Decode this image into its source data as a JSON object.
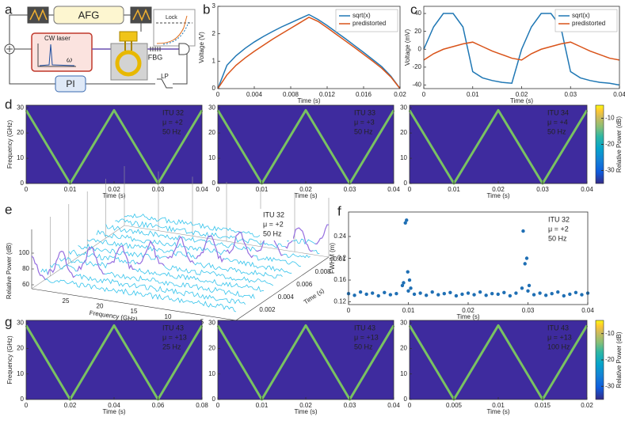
{
  "panels": [
    "a",
    "b",
    "c",
    "d",
    "e",
    "f",
    "g"
  ],
  "diagram": {
    "afg": "AFG",
    "laser": "CW laser",
    "omega": "ω",
    "lock": "Lock",
    "fbg": "FBG",
    "pi": "PI",
    "lp": "LP"
  },
  "chart_data": [
    {
      "type": "line",
      "xlabel": "Time (s)",
      "ylabel": "Voltage (V)",
      "x": [
        0,
        0.001,
        0.002,
        0.003,
        0.004,
        0.005,
        0.006,
        0.007,
        0.008,
        0.009,
        0.01,
        0.011,
        0.012,
        0.013,
        0.014,
        0.015,
        0.016,
        0.017,
        0.018,
        0.019,
        0.02
      ],
      "series": [
        {
          "name": "sqrt(x)",
          "color": "#1f77b4",
          "values": [
            0,
            0.85,
            1.2,
            1.47,
            1.7,
            1.9,
            2.08,
            2.25,
            2.4,
            2.55,
            2.7,
            2.52,
            2.3,
            2.06,
            1.82,
            1.57,
            1.32,
            1.06,
            0.8,
            0.45,
            0
          ]
        },
        {
          "name": "predistorted",
          "color": "#d95319",
          "values": [
            0,
            0.5,
            0.85,
            1.12,
            1.36,
            1.58,
            1.8,
            2.0,
            2.2,
            2.4,
            2.6,
            2.45,
            2.22,
            1.98,
            1.74,
            1.5,
            1.25,
            1.0,
            0.74,
            0.42,
            0
          ]
        }
      ],
      "xlim": [
        0,
        0.02
      ],
      "xticks": [
        0,
        0.004,
        0.008,
        0.012,
        0.016,
        0.02
      ],
      "ylim": [
        0,
        3
      ],
      "yticks": [
        0,
        1,
        2,
        3
      ],
      "legend": "upper right"
    },
    {
      "type": "line",
      "xlabel": "Time (s)",
      "ylabel": "Voltage (mV)",
      "x": [
        0,
        0.002,
        0.004,
        0.006,
        0.008,
        0.01,
        0.012,
        0.014,
        0.016,
        0.018,
        0.02,
        0.022,
        0.024,
        0.026,
        0.028,
        0.03,
        0.032,
        0.034,
        0.036,
        0.038,
        0.04
      ],
      "series": [
        {
          "name": "sqrt(x)",
          "color": "#1f77b4",
          "values": [
            0,
            25,
            40,
            40,
            25,
            -25,
            -32,
            -35,
            -37,
            -38,
            0,
            25,
            40,
            40,
            25,
            -25,
            -32,
            -35,
            -37,
            -38,
            -40
          ]
        },
        {
          "name": "predistorted",
          "color": "#d95319",
          "values": [
            -12,
            -5,
            0,
            3,
            6,
            8,
            3,
            -2,
            -6,
            -10,
            -12,
            -5,
            0,
            3,
            6,
            8,
            3,
            -2,
            -6,
            -10,
            -12
          ]
        }
      ],
      "xlim": [
        0,
        0.04
      ],
      "xticks": [
        0,
        0.01,
        0.02,
        0.03,
        0.04
      ],
      "ylim": [
        -44,
        48
      ],
      "yticks": [
        -40,
        -20,
        0,
        20,
        40
      ],
      "legend": "upper right"
    },
    {
      "type": "spectrogram",
      "xlabel": "Time (s)",
      "ylabel": "Frequency (GHz)",
      "annotations": [
        "ITU 32",
        "μ = +2",
        "50 Hz"
      ],
      "x": [
        0,
        0.01,
        0.02,
        0.03,
        0.04
      ],
      "values": [
        29,
        0,
        29,
        0,
        29
      ],
      "xlim": [
        0,
        0.04
      ],
      "xticks": [
        0,
        0.01,
        0.02,
        0.03,
        0.04
      ],
      "ylim": [
        0,
        31
      ],
      "yticks": [
        0,
        10,
        20,
        30
      ],
      "background": "#3e2b9e",
      "color": "#7fd35a"
    },
    {
      "type": "spectrogram",
      "xlabel": "Time (s)",
      "annotations": [
        "ITU 33",
        "μ = +3",
        "50 Hz"
      ],
      "x": [
        0,
        0.01,
        0.02,
        0.03,
        0.04
      ],
      "values": [
        29,
        0,
        29,
        0,
        29
      ],
      "xlim": [
        0,
        0.04
      ],
      "xticks": [
        0,
        0.01,
        0.02,
        0.03,
        0.04
      ],
      "ylim": [
        0,
        31
      ],
      "yticks": [
        0,
        10,
        20,
        30
      ],
      "background": "#3e2b9e",
      "color": "#7fd35a"
    },
    {
      "type": "spectrogram",
      "xlabel": "Time (s)",
      "annotations": [
        "ITU 34",
        "μ = +4",
        "50 Hz"
      ],
      "x": [
        0,
        0.01,
        0.02,
        0.03,
        0.04
      ],
      "values": [
        29,
        0,
        29,
        0,
        29
      ],
      "xlim": [
        0,
        0.04
      ],
      "xticks": [
        0,
        0.01,
        0.02,
        0.03,
        0.04
      ],
      "ylim": [
        0,
        31
      ],
      "yticks": [
        0,
        10,
        20,
        30
      ],
      "background": "#3e2b9e",
      "color": "#7fd35a",
      "clim": [
        -35,
        -5
      ],
      "cticks": [
        -10,
        -20,
        -30
      ],
      "clabel": "Relative Power (dB)"
    },
    {
      "type": "waterfall",
      "xlabel": "Frequency (GHz)",
      "ylabel": "Relative Power (dB)",
      "tlabel": "Time (s)",
      "annotations": [
        "ITU 32",
        "μ = +2",
        "50 Hz"
      ],
      "times": [
        0,
        0.001,
        0.002,
        0.003,
        0.004,
        0.005,
        0.006,
        0.007,
        0.008,
        0.009,
        0.01
      ],
      "peaks": [
        30,
        27,
        24,
        21,
        18,
        15,
        12,
        9,
        6,
        3,
        0
      ],
      "floor": 66,
      "peak_level": 95,
      "flim": [
        0,
        30
      ],
      "fticks": [
        0,
        5,
        10,
        15,
        20,
        25
      ],
      "tlim": [
        0,
        0.01
      ],
      "tticks": [
        0.002,
        0.004,
        0.006,
        0.008,
        0.01
      ],
      "zlim": [
        55,
        130
      ],
      "zticks": [
        60,
        80,
        100
      ],
      "color": "#35c4ec",
      "peak_color": "#9b6fe0"
    },
    {
      "type": "scatter",
      "xlabel": "Time (s)",
      "ylabel": "FWHM (m)",
      "annotations": [
        "ITU 32",
        "μ = +2",
        "50 Hz"
      ],
      "x": [
        0,
        0.001,
        0.002,
        0.003,
        0.004,
        0.005,
        0.006,
        0.007,
        0.008,
        0.009,
        0.01,
        0.011,
        0.012,
        0.013,
        0.014,
        0.015,
        0.016,
        0.017,
        0.018,
        0.019,
        0.02,
        0.021,
        0.022,
        0.023,
        0.024,
        0.025,
        0.026,
        0.027,
        0.028,
        0.029,
        0.03,
        0.031,
        0.032,
        0.033,
        0.034,
        0.035,
        0.036,
        0.037,
        0.038,
        0.039,
        0.04,
        0.0092,
        0.0095,
        0.0097,
        0.0099,
        0.0102,
        0.0104,
        0.0292,
        0.0295,
        0.0298,
        0.0302
      ],
      "values": [
        0.135,
        0.132,
        0.138,
        0.134,
        0.136,
        0.131,
        0.137,
        0.133,
        0.135,
        0.15,
        0.14,
        0.134,
        0.136,
        0.132,
        0.138,
        0.133,
        0.135,
        0.137,
        0.131,
        0.134,
        0.136,
        0.133,
        0.138,
        0.132,
        0.135,
        0.134,
        0.137,
        0.131,
        0.136,
        0.145,
        0.14,
        0.133,
        0.136,
        0.132,
        0.135,
        0.138,
        0.131,
        0.134,
        0.137,
        0.133,
        0.136,
        0.155,
        0.265,
        0.27,
        0.175,
        0.16,
        0.145,
        0.25,
        0.19,
        0.2,
        0.15
      ],
      "color": "#1f6fb4",
      "xlim": [
        0,
        0.04
      ],
      "xticks": [
        0,
        0.01,
        0.02,
        0.03,
        0.04
      ],
      "ylim": [
        0.115,
        0.285
      ],
      "yticks": [
        0.12,
        0.16,
        0.2,
        0.24
      ]
    },
    {
      "type": "spectrogram",
      "xlabel": "Time (s)",
      "ylabel": "Frequency (GHz)",
      "annotations": [
        "ITU 43",
        "μ = +13",
        "25 Hz"
      ],
      "x": [
        0,
        0.02,
        0.04,
        0.06,
        0.08
      ],
      "values": [
        29,
        0,
        29,
        0,
        29
      ],
      "xlim": [
        0,
        0.08
      ],
      "xticks": [
        0,
        0.02,
        0.04,
        0.06,
        0.08
      ],
      "ylim": [
        0,
        31
      ],
      "yticks": [
        0,
        10,
        20,
        30
      ],
      "background": "#3e2b9e",
      "color": "#7fd35a"
    },
    {
      "type": "spectrogram",
      "xlabel": "Time (s)",
      "annotations": [
        "ITU 43",
        "μ = +13",
        "50 Hz"
      ],
      "x": [
        0,
        0.01,
        0.02,
        0.03,
        0.04
      ],
      "values": [
        29,
        0,
        29,
        0,
        29
      ],
      "xlim": [
        0,
        0.04
      ],
      "xticks": [
        0,
        0.01,
        0.02,
        0.03,
        0.04
      ],
      "ylim": [
        0,
        31
      ],
      "yticks": [
        0,
        10,
        20,
        30
      ],
      "background": "#3e2b9e",
      "color": "#7fd35a"
    },
    {
      "type": "spectrogram",
      "xlabel": "Time (s)",
      "annotations": [
        "ITU 43",
        "μ = +13",
        "100 Hz"
      ],
      "x": [
        0,
        0.005,
        0.01,
        0.015,
        0.02
      ],
      "values": [
        29,
        0,
        29,
        0,
        29
      ],
      "xlim": [
        0,
        0.02
      ],
      "xticks": [
        0,
        0.005,
        0.01,
        0.015,
        0.02
      ],
      "ylim": [
        0,
        31
      ],
      "yticks": [
        0,
        10,
        20,
        30
      ],
      "background": "#3e2b9e",
      "color": "#7fd35a",
      "clim": [
        -35,
        -5
      ],
      "cticks": [
        -10,
        -20,
        -30
      ],
      "clabel": "Relative Power (dB)"
    }
  ]
}
